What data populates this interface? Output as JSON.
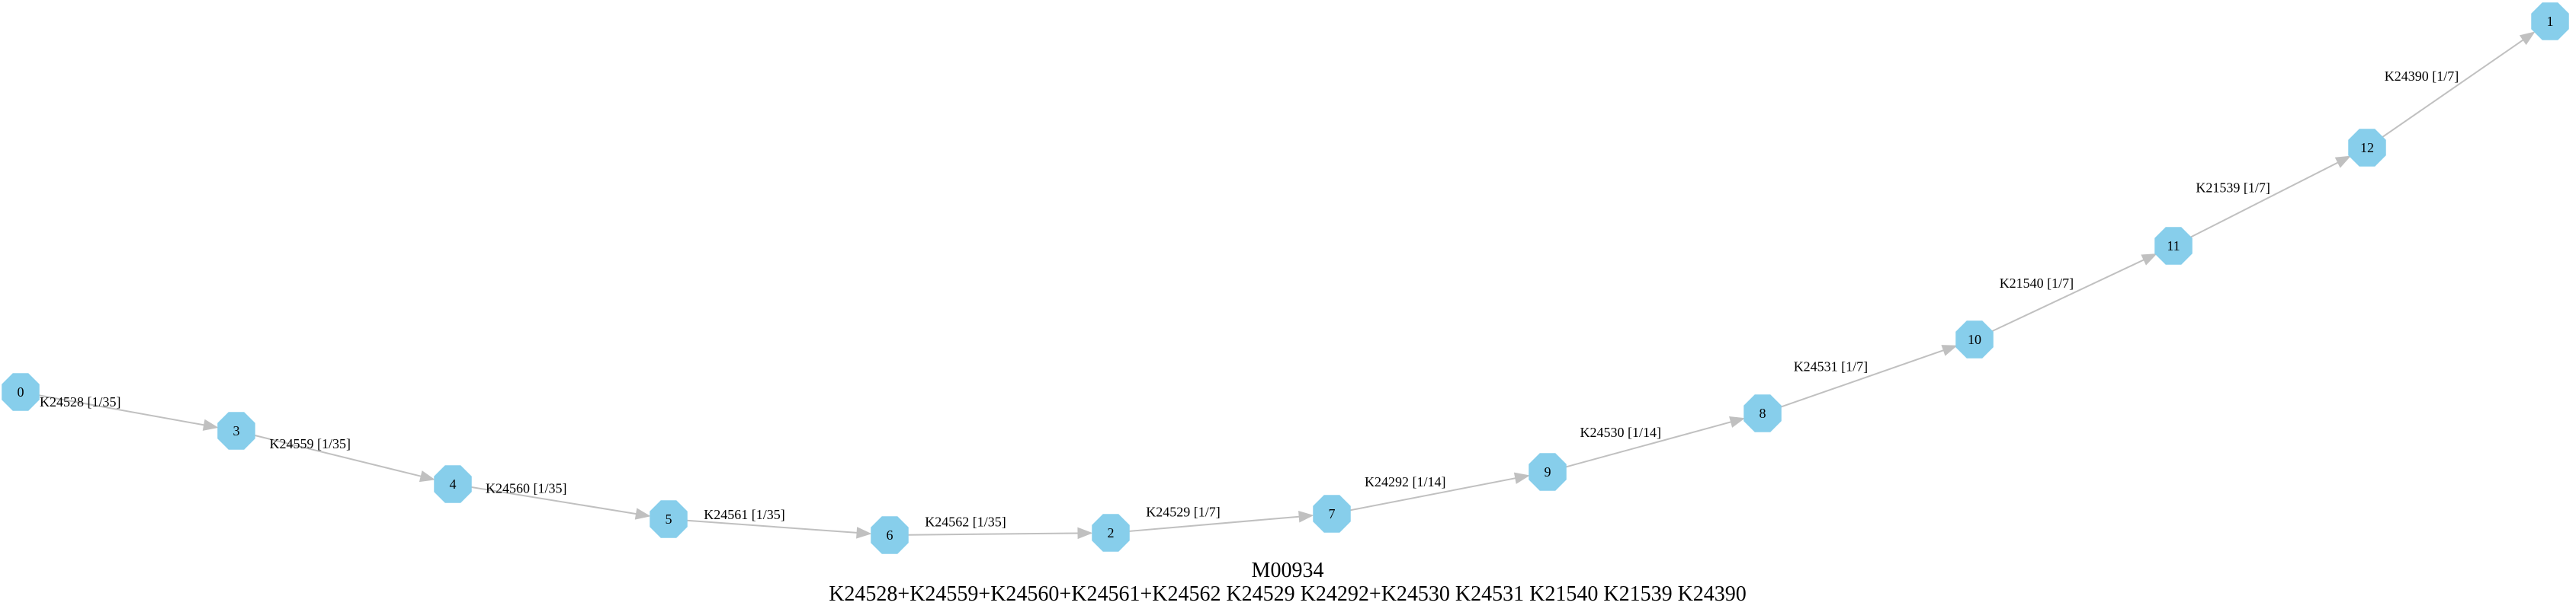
{
  "diagram": {
    "caption_title": "M00934",
    "caption_definition": "K24528+K24559+K24560+K24561+K24562 K24529 K24292+K24530 K24531 K21540 K21539 K24390",
    "node_color": "#87CEEB",
    "edge_color": "#c0c0c0",
    "nodes": [
      {
        "id": "0",
        "label": "0"
      },
      {
        "id": "3",
        "label": "3"
      },
      {
        "id": "4",
        "label": "4"
      },
      {
        "id": "5",
        "label": "5"
      },
      {
        "id": "6",
        "label": "6"
      },
      {
        "id": "2",
        "label": "2"
      },
      {
        "id": "7",
        "label": "7"
      },
      {
        "id": "9",
        "label": "9"
      },
      {
        "id": "8",
        "label": "8"
      },
      {
        "id": "10",
        "label": "10"
      },
      {
        "id": "11",
        "label": "11"
      },
      {
        "id": "12",
        "label": "12"
      },
      {
        "id": "1",
        "label": "1"
      }
    ],
    "edges": [
      {
        "from": "0",
        "to": "3",
        "label": "K24528 [1/35]"
      },
      {
        "from": "3",
        "to": "4",
        "label": "K24559 [1/35]"
      },
      {
        "from": "4",
        "to": "5",
        "label": "K24560 [1/35]"
      },
      {
        "from": "5",
        "to": "6",
        "label": "K24561 [1/35]"
      },
      {
        "from": "6",
        "to": "2",
        "label": "K24562 [1/35]"
      },
      {
        "from": "2",
        "to": "7",
        "label": "K24529 [1/7]"
      },
      {
        "from": "7",
        "to": "9",
        "label": "K24292 [1/14]"
      },
      {
        "from": "9",
        "to": "8",
        "label": "K24530 [1/14]"
      },
      {
        "from": "8",
        "to": "10",
        "label": "K24531 [1/7]"
      },
      {
        "from": "10",
        "to": "11",
        "label": "K21540 [1/7]"
      },
      {
        "from": "11",
        "to": "12",
        "label": "K21539 [1/7]"
      },
      {
        "from": "12",
        "to": "1",
        "label": "K24390 [1/7]"
      }
    ]
  }
}
